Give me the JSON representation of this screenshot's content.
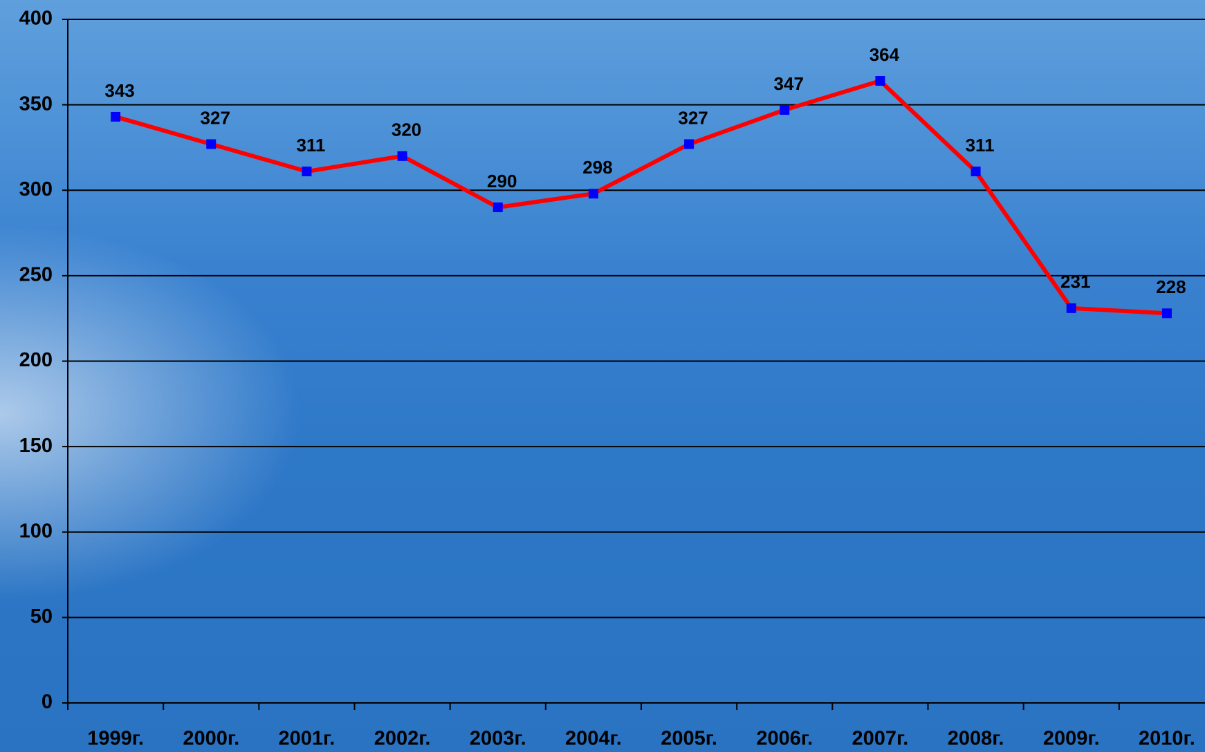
{
  "chart_data": {
    "type": "line",
    "categories": [
      "1999г.",
      "2000г.",
      "2001г.",
      "2002г.",
      "2003г.",
      "2004г.",
      "2005г.",
      "2006г.",
      "2007г.",
      "2008г.",
      "2009г.",
      "2010г."
    ],
    "series": [
      {
        "color": "#ff0000",
        "marker_color": "#0000ff",
        "values": [
          343,
          327,
          311,
          320,
          290,
          298,
          327,
          347,
          364,
          311,
          231,
          228
        ]
      }
    ],
    "ylim": [
      0,
      400
    ],
    "yticks": [
      0,
      50,
      100,
      150,
      200,
      250,
      300,
      350,
      400
    ],
    "grid": true
  }
}
